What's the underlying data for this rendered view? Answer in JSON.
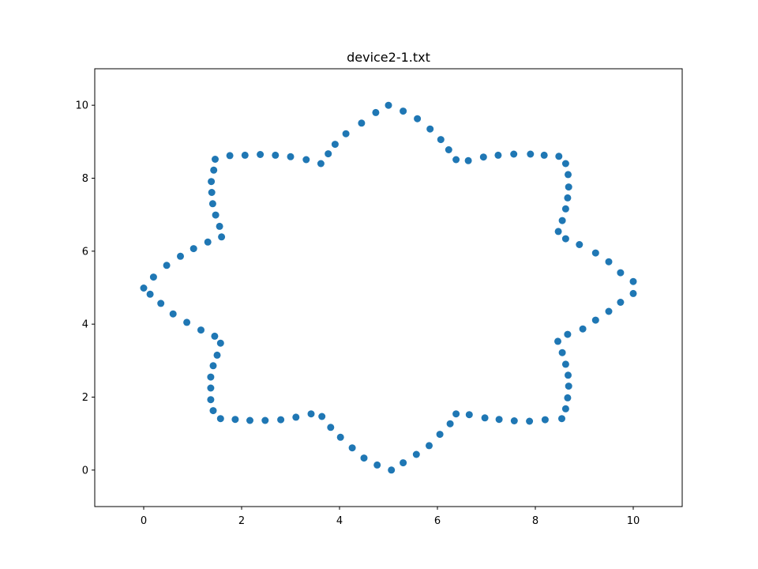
{
  "chart_data": {
    "type": "scatter",
    "title": "device2-1.txt",
    "xlabel": "",
    "ylabel": "",
    "xlim": [
      -1,
      11
    ],
    "ylim": [
      -1,
      11
    ],
    "xticks": [
      0,
      2,
      4,
      6,
      8,
      10
    ],
    "yticks": [
      0,
      2,
      4,
      6,
      8,
      10
    ],
    "grid": false,
    "marker_color": "#1f77b4",
    "series": [
      {
        "points": [
          [
            5.0,
            10.0
          ],
          [
            5.3,
            9.84
          ],
          [
            5.59,
            9.63
          ],
          [
            5.85,
            9.35
          ],
          [
            6.07,
            9.06
          ],
          [
            6.23,
            8.78
          ],
          [
            6.38,
            8.51
          ],
          [
            6.63,
            8.48
          ],
          [
            6.94,
            8.58
          ],
          [
            7.24,
            8.63
          ],
          [
            7.56,
            8.66
          ],
          [
            7.9,
            8.66
          ],
          [
            8.18,
            8.63
          ],
          [
            8.48,
            8.6
          ],
          [
            8.62,
            8.4
          ],
          [
            8.67,
            8.1
          ],
          [
            8.68,
            7.76
          ],
          [
            8.66,
            7.46
          ],
          [
            8.62,
            7.16
          ],
          [
            8.55,
            6.84
          ],
          [
            8.47,
            6.54
          ],
          [
            8.62,
            6.34
          ],
          [
            8.9,
            6.18
          ],
          [
            9.23,
            5.95
          ],
          [
            9.5,
            5.71
          ],
          [
            9.74,
            5.41
          ],
          [
            10.0,
            5.17
          ],
          [
            10.0,
            4.84
          ],
          [
            9.74,
            4.6
          ],
          [
            9.5,
            4.35
          ],
          [
            9.23,
            4.11
          ],
          [
            8.97,
            3.87
          ],
          [
            8.66,
            3.72
          ],
          [
            8.46,
            3.53
          ],
          [
            8.55,
            3.22
          ],
          [
            8.62,
            2.9
          ],
          [
            8.67,
            2.6
          ],
          [
            8.68,
            2.3
          ],
          [
            8.66,
            1.98
          ],
          [
            8.62,
            1.68
          ],
          [
            8.54,
            1.41
          ],
          [
            8.2,
            1.38
          ],
          [
            7.88,
            1.34
          ],
          [
            7.57,
            1.35
          ],
          [
            7.26,
            1.39
          ],
          [
            6.97,
            1.43
          ],
          [
            6.65,
            1.52
          ],
          [
            6.38,
            1.54
          ],
          [
            6.26,
            1.27
          ],
          [
            6.05,
            0.98
          ],
          [
            5.83,
            0.67
          ],
          [
            5.57,
            0.43
          ],
          [
            5.3,
            0.2
          ],
          [
            5.06,
            0.0
          ],
          [
            4.77,
            0.14
          ],
          [
            4.5,
            0.33
          ],
          [
            4.26,
            0.61
          ],
          [
            4.02,
            0.9
          ],
          [
            3.82,
            1.17
          ],
          [
            3.64,
            1.47
          ],
          [
            3.42,
            1.54
          ],
          [
            3.11,
            1.45
          ],
          [
            2.8,
            1.38
          ],
          [
            2.48,
            1.36
          ],
          [
            2.17,
            1.36
          ],
          [
            1.87,
            1.39
          ],
          [
            1.57,
            1.41
          ],
          [
            1.42,
            1.63
          ],
          [
            1.37,
            1.93
          ],
          [
            1.37,
            2.25
          ],
          [
            1.37,
            2.55
          ],
          [
            1.42,
            2.86
          ],
          [
            1.5,
            3.15
          ],
          [
            1.57,
            3.48
          ],
          [
            1.45,
            3.67
          ],
          [
            1.17,
            3.84
          ],
          [
            0.88,
            4.05
          ],
          [
            0.6,
            4.28
          ],
          [
            0.35,
            4.57
          ],
          [
            0.13,
            4.82
          ],
          [
            0.0,
            4.99
          ],
          [
            0.2,
            5.29
          ],
          [
            0.47,
            5.61
          ],
          [
            0.75,
            5.86
          ],
          [
            1.02,
            6.07
          ],
          [
            1.31,
            6.25
          ],
          [
            1.59,
            6.39
          ],
          [
            1.55,
            6.68
          ],
          [
            1.47,
            6.99
          ],
          [
            1.41,
            7.3
          ],
          [
            1.39,
            7.61
          ],
          [
            1.38,
            7.91
          ],
          [
            1.43,
            8.22
          ],
          [
            1.46,
            8.52
          ],
          [
            1.76,
            8.62
          ],
          [
            2.07,
            8.63
          ],
          [
            2.38,
            8.65
          ],
          [
            2.69,
            8.63
          ],
          [
            3.0,
            8.59
          ],
          [
            3.32,
            8.51
          ],
          [
            3.62,
            8.4
          ],
          [
            3.77,
            8.67
          ],
          [
            3.91,
            8.93
          ],
          [
            4.13,
            9.22
          ],
          [
            4.45,
            9.51
          ],
          [
            4.74,
            9.8
          ]
        ]
      }
    ]
  }
}
